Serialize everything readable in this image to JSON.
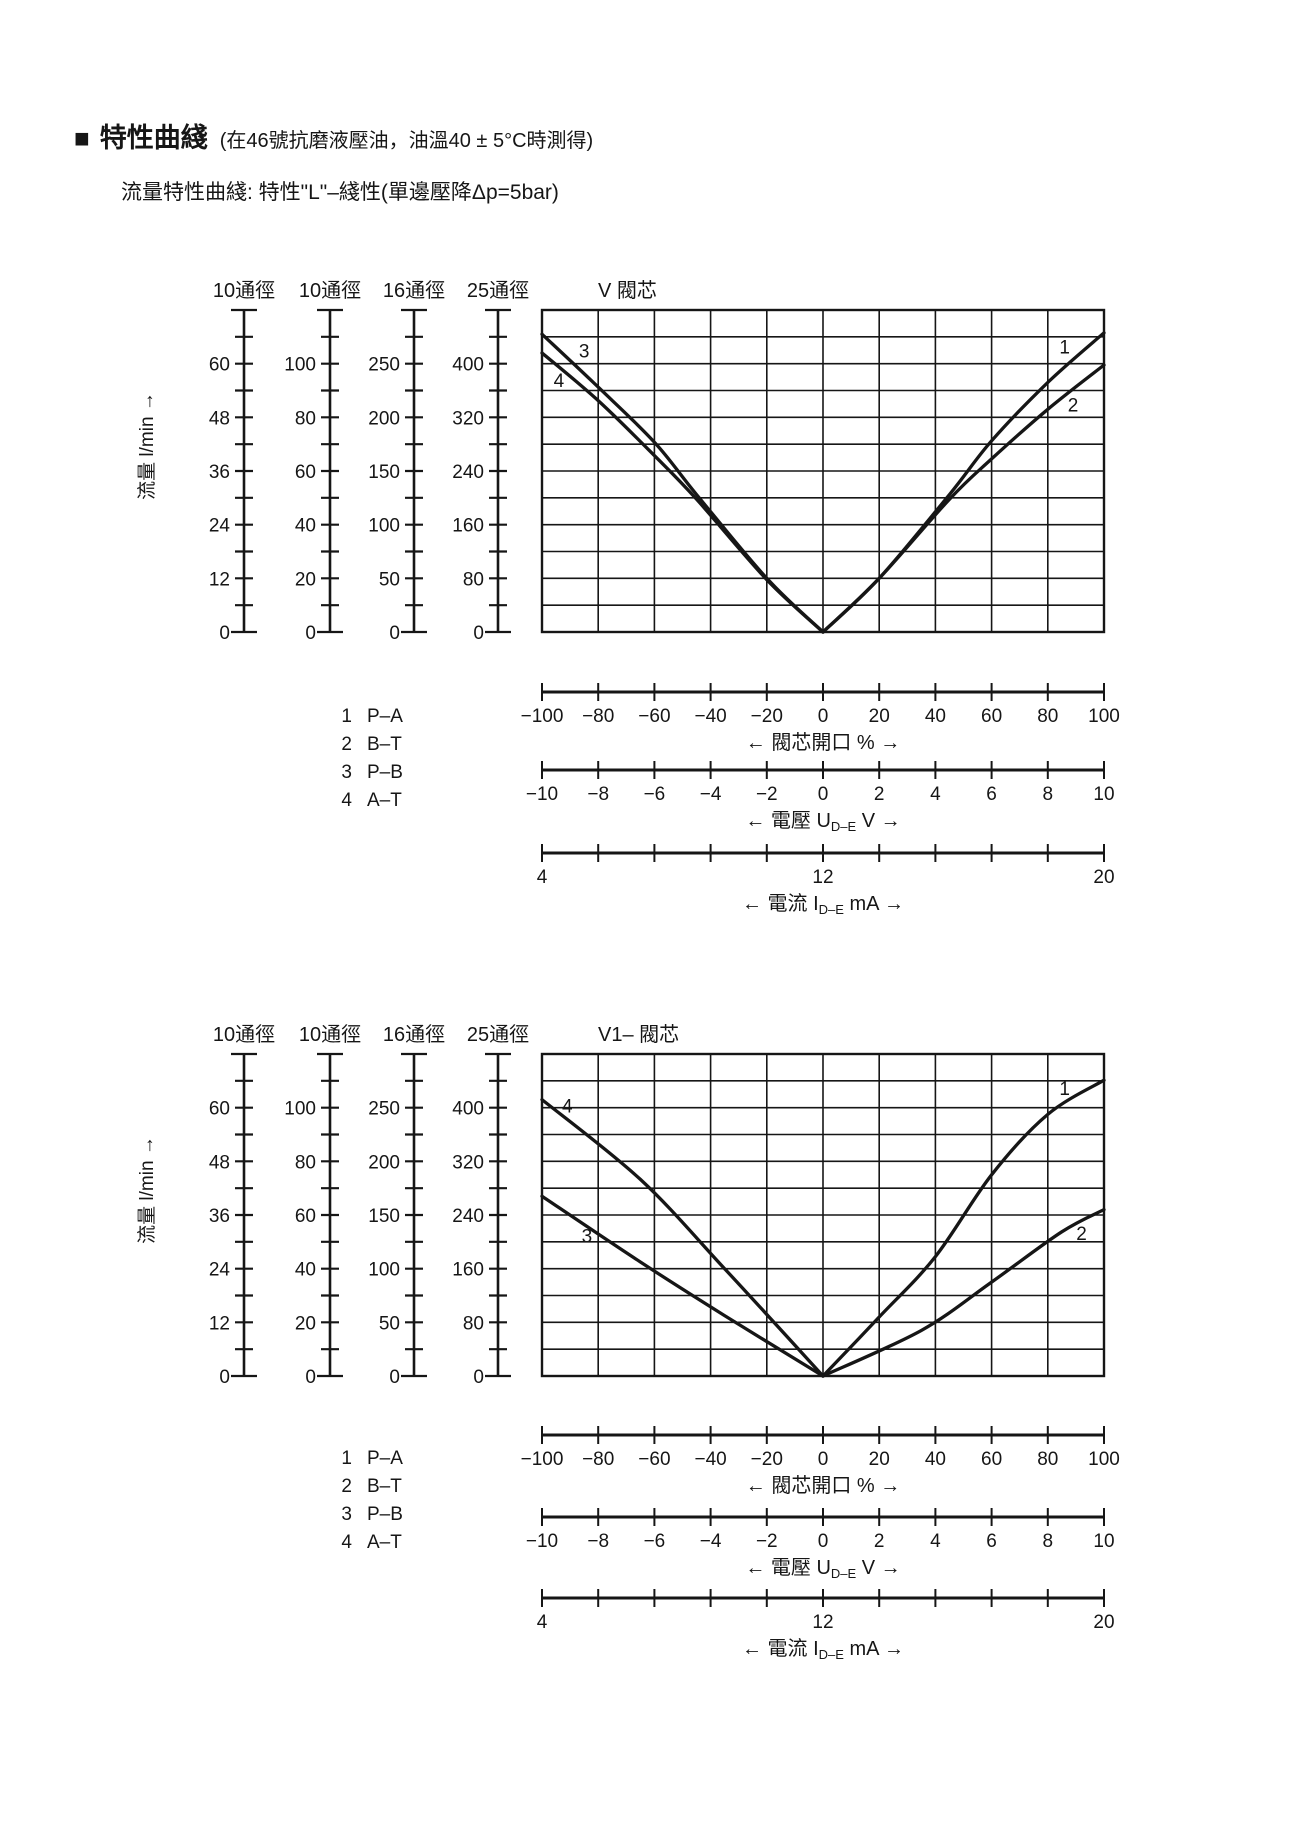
{
  "page": {
    "title_marker": "■",
    "title": "特性曲綫",
    "title_note": "(在46號抗磨液壓油，油溫40 ± 5°C時測得)",
    "subtitle": "流量特性曲綫: 特性\"L\"–綫性(單邊壓降Δp=5bar)"
  },
  "colors": {
    "ink": "#161616",
    "background": "#ffffff"
  },
  "chart_data": [
    {
      "type": "line",
      "title": "V 閥芯",
      "flow_axis_label": "流量 l/min →",
      "x_units": "閥芯開口 %",
      "xlim": [
        -100,
        100
      ],
      "ylim": [
        0,
        480
      ],
      "y_units": "l/min (25通徑 scale, 0–480)",
      "grid": {
        "columns": 10,
        "rows": 12
      },
      "scales": [
        {
          "header": "10通徑",
          "labels": [
            "60",
            "48",
            "36",
            "24",
            "12",
            "0"
          ]
        },
        {
          "header": "10通徑",
          "labels": [
            "100",
            "80",
            "60",
            "40",
            "20",
            "0"
          ]
        },
        {
          "header": "16通徑",
          "labels": [
            "250",
            "200",
            "150",
            "100",
            "50",
            "0"
          ]
        },
        {
          "header": "25通徑",
          "labels": [
            "400",
            "320",
            "240",
            "160",
            "80",
            "0"
          ]
        }
      ],
      "series": [
        {
          "id": "1",
          "route": "P–A",
          "points": [
            [
              0,
              0
            ],
            [
              20,
              80
            ],
            [
              45,
              205
            ],
            [
              60,
              285
            ],
            [
              80,
              372
            ],
            [
              100,
              446
            ]
          ],
          "label_at": [
            86,
            424
          ]
        },
        {
          "id": "2",
          "route": "B–T",
          "points": [
            [
              0,
              0
            ],
            [
              20,
              80
            ],
            [
              45,
              198
            ],
            [
              60,
              258
            ],
            [
              80,
              332
            ],
            [
              100,
              398
            ]
          ],
          "label_at": [
            89,
            338
          ]
        },
        {
          "id": "3",
          "route": "P–B",
          "points": [
            [
              -100,
              444
            ],
            [
              -80,
              365
            ],
            [
              -60,
              283
            ],
            [
              -45,
              205
            ],
            [
              -20,
              80
            ],
            [
              0,
              0
            ]
          ],
          "label_at": [
            -85,
            418
          ]
        },
        {
          "id": "4",
          "route": "A–T",
          "points": [
            [
              -100,
              416
            ],
            [
              -80,
              345
            ],
            [
              -60,
              263
            ],
            [
              -45,
              198
            ],
            [
              -20,
              78
            ],
            [
              0,
              0
            ]
          ],
          "label_at": [
            -94,
            374
          ]
        }
      ],
      "x_axes": [
        {
          "tick_labels": [
            "−100",
            "−80",
            "−60",
            "−40",
            "−20",
            "0",
            "20",
            "40",
            "60",
            "80",
            "100"
          ],
          "title_parts": [
            {
              "t": "← 閥芯開口 % →",
              "sub": false
            }
          ]
        },
        {
          "tick_labels": [
            "−10",
            "−8",
            "−6",
            "−4",
            "−2",
            "0",
            "2",
            "4",
            "6",
            "8",
            "10"
          ],
          "title_parts": [
            {
              "t": "← 電壓 U",
              "sub": false
            },
            {
              "t": "D–E",
              "sub": true
            },
            {
              "t": " V →",
              "sub": false
            }
          ]
        },
        {
          "tick_labels": [
            "4",
            "",
            "",
            "",
            "",
            "12",
            "",
            "",
            "",
            "",
            "20"
          ],
          "title_parts": [
            {
              "t": "← 電流 I",
              "sub": false
            },
            {
              "t": "D–E",
              "sub": true
            },
            {
              "t": " mA →",
              "sub": false
            }
          ]
        }
      ],
      "legend": [
        {
          "num": "1",
          "route": "P–A"
        },
        {
          "num": "2",
          "route": "B–T"
        },
        {
          "num": "3",
          "route": "P–B"
        },
        {
          "num": "4",
          "route": "A–T"
        }
      ]
    },
    {
      "type": "line",
      "title": "V1– 閥芯",
      "flow_axis_label": "流量 l/min →",
      "x_units": "閥芯開口 %",
      "xlim": [
        -100,
        100
      ],
      "ylim": [
        0,
        480
      ],
      "y_units": "l/min (25通徑 scale, 0–480)",
      "grid": {
        "columns": 10,
        "rows": 12
      },
      "scales": [
        {
          "header": "10通徑",
          "labels": [
            "60",
            "48",
            "36",
            "24",
            "12",
            "0"
          ]
        },
        {
          "header": "10通徑",
          "labels": [
            "100",
            "80",
            "60",
            "40",
            "20",
            "0"
          ]
        },
        {
          "header": "16通徑",
          "labels": [
            "250",
            "200",
            "150",
            "100",
            "50",
            "0"
          ]
        },
        {
          "header": "25通徑",
          "labels": [
            "400",
            "320",
            "240",
            "160",
            "80",
            "0"
          ]
        }
      ],
      "series": [
        {
          "id": "1",
          "route": "P–A",
          "points": [
            [
              0,
              0
            ],
            [
              20,
              88
            ],
            [
              40,
              178
            ],
            [
              60,
              300
            ],
            [
              80,
              390
            ],
            [
              100,
              441
            ]
          ],
          "label_at": [
            86,
            428
          ]
        },
        {
          "id": "2",
          "route": "B–T",
          "points": [
            [
              0,
              0
            ],
            [
              35,
              68
            ],
            [
              60,
              140
            ],
            [
              85,
              215
            ],
            [
              100,
              248
            ]
          ],
          "label_at": [
            92,
            212
          ]
        },
        {
          "id": "3",
          "route": "P–B",
          "points": [
            [
              -100,
              268
            ],
            [
              -65,
              170
            ],
            [
              -35,
              90
            ],
            [
              0,
              0
            ]
          ],
          "label_at": [
            -84,
            208
          ]
        },
        {
          "id": "4",
          "route": "A–T",
          "points": [
            [
              -100,
              412
            ],
            [
              -65,
              293
            ],
            [
              -35,
              160
            ],
            [
              0,
              0
            ]
          ],
          "label_at": [
            -91,
            402
          ]
        }
      ],
      "x_axes": [
        {
          "tick_labels": [
            "−100",
            "−80",
            "−60",
            "−40",
            "−20",
            "0",
            "20",
            "40",
            "60",
            "80",
            "100"
          ],
          "title_parts": [
            {
              "t": "← 閥芯開口 % →",
              "sub": false
            }
          ]
        },
        {
          "tick_labels": [
            "−10",
            "−8",
            "−6",
            "−4",
            "−2",
            "0",
            "2",
            "4",
            "6",
            "8",
            "10"
          ],
          "title_parts": [
            {
              "t": "← 電壓 U",
              "sub": false
            },
            {
              "t": "D–E",
              "sub": true
            },
            {
              "t": " V →",
              "sub": false
            }
          ]
        },
        {
          "tick_labels": [
            "4",
            "",
            "",
            "",
            "",
            "12",
            "",
            "",
            "",
            "",
            "20"
          ],
          "title_parts": [
            {
              "t": "← 電流 I",
              "sub": false
            },
            {
              "t": "D–E",
              "sub": true
            },
            {
              "t": " mA →",
              "sub": false
            }
          ]
        }
      ],
      "legend": [
        {
          "num": "1",
          "route": "P–A"
        },
        {
          "num": "2",
          "route": "B–T"
        },
        {
          "num": "3",
          "route": "P–B"
        },
        {
          "num": "4",
          "route": "A–T"
        }
      ]
    }
  ]
}
